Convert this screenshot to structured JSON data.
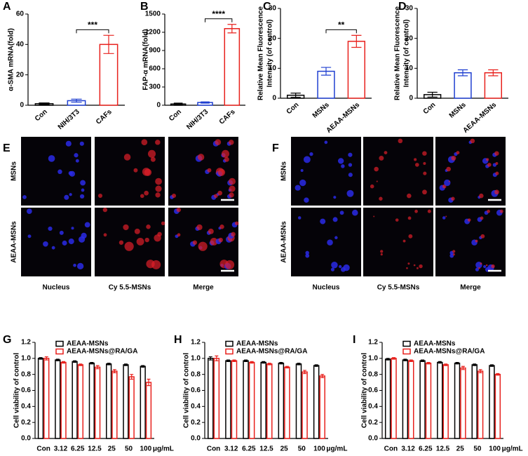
{
  "chart_data": [
    {
      "type": "bar",
      "panel": "A",
      "ylabel": [
        "α-SMA mRNA(fold)"
      ],
      "categories": [
        "Con",
        "NIH/3T3",
        "CAFs"
      ],
      "values": [
        1,
        3,
        40
      ],
      "errors": [
        0.5,
        1,
        6
      ],
      "colors": [
        "#000000",
        "#1f3fd0",
        "#e8201c"
      ],
      "ylim": [
        0,
        60
      ],
      "yticks": [
        0,
        20,
        40,
        60
      ],
      "annotations": [
        {
          "text": "***",
          "between": [
            "NIH/3T3",
            "CAFs"
          ]
        }
      ]
    },
    {
      "type": "bar",
      "panel": "B",
      "ylabel": [
        "FAP-α mRNA(fold)"
      ],
      "categories": [
        "Con",
        "NIH/3T3",
        "CAFs"
      ],
      "values": [
        20,
        45,
        1260
      ],
      "errors": [
        15,
        10,
        70
      ],
      "colors": [
        "#000000",
        "#1f3fd0",
        "#e8201c"
      ],
      "ylim": [
        0,
        1500
      ],
      "yticks": [
        0,
        300,
        600,
        900,
        1200,
        1500
      ],
      "annotations": [
        {
          "text": "****",
          "between": [
            "NIH/3T3",
            "CAFs"
          ]
        }
      ]
    },
    {
      "type": "bar",
      "panel": "C",
      "ylabel": [
        "Relative Mean Fluorescence",
        "Intensity (of control)"
      ],
      "categories": [
        "Con",
        "MSNs",
        "AEAA-MSNs"
      ],
      "values": [
        1,
        9,
        19
      ],
      "errors": [
        0.7,
        1.3,
        2
      ],
      "colors": [
        "#000000",
        "#1f3fd0",
        "#e8201c"
      ],
      "ylim": [
        0,
        30
      ],
      "yticks": [
        0,
        10,
        20,
        30
      ],
      "annotations": [
        {
          "text": "**",
          "between": [
            "MSNs",
            "AEAA-MSNs"
          ]
        }
      ]
    },
    {
      "type": "bar",
      "panel": "D",
      "ylabel": [
        "Relative Mean Fluorescence",
        "Intensity (of control)"
      ],
      "categories": [
        "Con",
        "MSNs",
        "AEAA-MSNs"
      ],
      "values": [
        1.2,
        8.5,
        8.5
      ],
      "errors": [
        0.8,
        1,
        1
      ],
      "colors": [
        "#000000",
        "#1f3fd0",
        "#e8201c"
      ],
      "ylim": [
        0,
        30
      ],
      "yticks": [
        0,
        10,
        20,
        30
      ],
      "annotations": []
    },
    {
      "type": "bar",
      "panel": "G",
      "ylabel": [
        "Cell viability of control"
      ],
      "categories": [
        "Con",
        "3.12",
        "6.25",
        "12.5",
        "25",
        "50",
        "100"
      ],
      "x_unit": "μg/mL",
      "series": [
        {
          "name": "AEAA-MSNs",
          "color": "#000000",
          "values": [
            1.0,
            0.98,
            0.96,
            0.94,
            0.93,
            0.92,
            0.9
          ],
          "errors": [
            0.01,
            0.01,
            0.01,
            0.01,
            0.01,
            0.01,
            0.01
          ]
        },
        {
          "name": "AEAA-MSNs@RA/GA",
          "color": "#e8201c",
          "values": [
            1.0,
            0.95,
            0.92,
            0.89,
            0.84,
            0.77,
            0.7
          ],
          "errors": [
            0.02,
            0.01,
            0.01,
            0.02,
            0.02,
            0.03,
            0.04
          ]
        }
      ],
      "ylim": [
        0,
        1.2
      ],
      "yticks": [
        {
          "value": 0,
          "label": "0.0"
        },
        0.2,
        0.4,
        0.6,
        0.8,
        {
          "value": 1,
          "label": "1.0"
        },
        1.2
      ]
    },
    {
      "type": "bar",
      "panel": "H",
      "ylabel": [
        "Cell viability of control"
      ],
      "categories": [
        "Con",
        "3.12",
        "6.25",
        "12.5",
        "25",
        "50",
        "100"
      ],
      "x_unit": "μg/mL",
      "series": [
        {
          "name": "AEAA-MSNs",
          "color": "#000000",
          "values": [
            1.0,
            0.97,
            0.97,
            0.95,
            0.94,
            0.93,
            0.91
          ],
          "errors": [
            0.02,
            0.01,
            0.01,
            0.01,
            0.01,
            0.01,
            0.01
          ]
        },
        {
          "name": "AEAA-MSNs@RA/GA",
          "color": "#e8201c",
          "values": [
            1.0,
            0.97,
            0.95,
            0.93,
            0.89,
            0.83,
            0.78
          ],
          "errors": [
            0.03,
            0.01,
            0.01,
            0.01,
            0.01,
            0.02,
            0.02
          ]
        }
      ],
      "ylim": [
        0,
        1.2
      ],
      "yticks": [
        {
          "value": 0,
          "label": "0.0"
        },
        0.2,
        0.4,
        0.6,
        0.8,
        {
          "value": 1,
          "label": "1.0"
        },
        1.2
      ]
    },
    {
      "type": "bar",
      "panel": "I",
      "ylabel": [
        "Cell viability of control"
      ],
      "categories": [
        "Con",
        "3.12",
        "6.25",
        "12.5",
        "25",
        "50",
        "100"
      ],
      "x_unit": "μg/mL",
      "series": [
        {
          "name": "AEAA-MSNs",
          "color": "#000000",
          "values": [
            0.99,
            0.98,
            0.97,
            0.95,
            0.94,
            0.92,
            0.91
          ],
          "errors": [
            0.01,
            0.01,
            0.01,
            0.01,
            0.01,
            0.01,
            0.01
          ]
        },
        {
          "name": "AEAA-MSNs@RA/GA",
          "color": "#e8201c",
          "values": [
            1.0,
            0.97,
            0.94,
            0.92,
            0.88,
            0.84,
            0.8
          ],
          "errors": [
            0.01,
            0.01,
            0.01,
            0.01,
            0.02,
            0.02,
            0.01
          ]
        }
      ],
      "ylim": [
        0,
        1.2
      ],
      "yticks": [
        {
          "value": 0,
          "label": "0.0"
        },
        0.2,
        0.4,
        0.6,
        0.8,
        {
          "value": 1,
          "label": "1.0"
        },
        1.2
      ]
    }
  ],
  "image_panels": [
    {
      "panel": "E",
      "rows": [
        "MSNs",
        "AEAA-MSNs"
      ],
      "columns": [
        "Nucleus",
        "Cy 5.5-MSNs",
        "Merge"
      ]
    },
    {
      "panel": "F",
      "rows": [
        "MSNs",
        "AEAA-MSNs"
      ],
      "columns": [
        "Nucleus",
        "Cy 5.5-MSNs",
        "Merge"
      ]
    }
  ]
}
